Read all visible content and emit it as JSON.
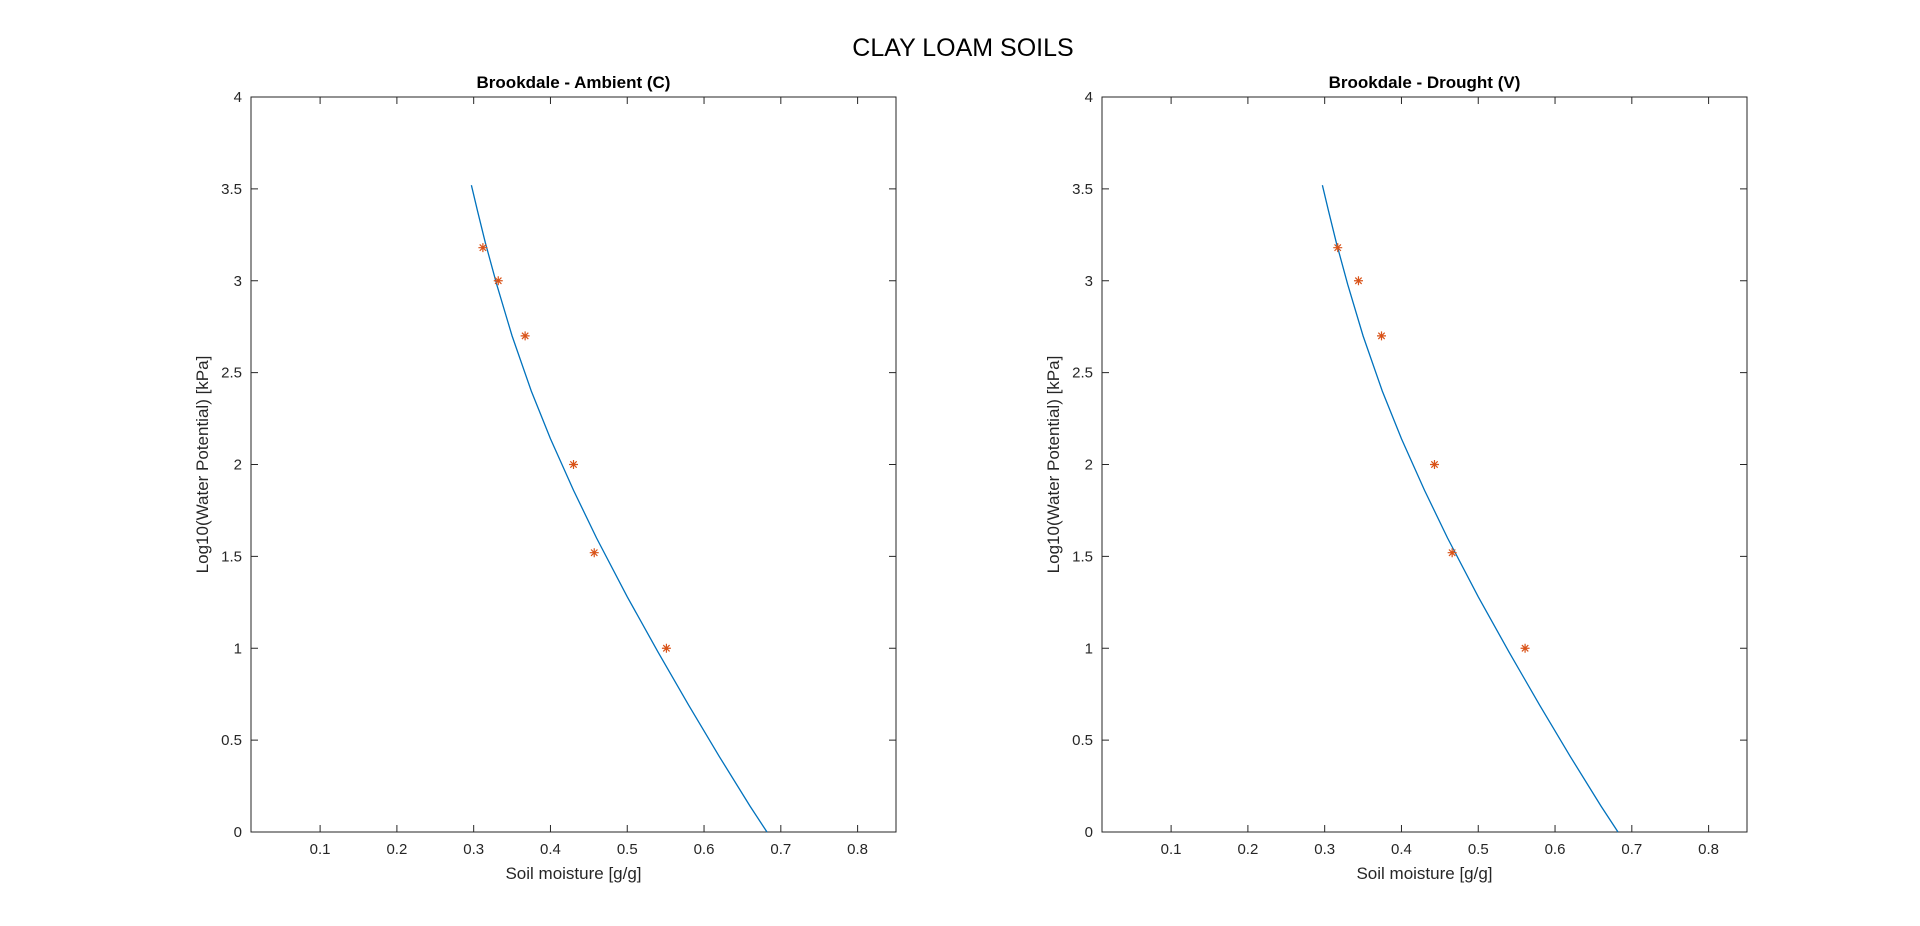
{
  "figure": {
    "title": "CLAY LOAM SOILS"
  },
  "colors": {
    "fit_line": "#0072BD",
    "markers": "#D95319",
    "axes": "#262626"
  },
  "chart_data": [
    {
      "type": "line",
      "title": "Brookdale - Ambient (C)",
      "xlabel": "Soil moisture [g/g]",
      "ylabel": "Log10(Water Potential) [kPa]",
      "xlim": [
        0.01,
        0.85
      ],
      "ylim": [
        0,
        4
      ],
      "xticks": [
        0.1,
        0.2,
        0.3,
        0.4,
        0.5,
        0.6,
        0.7,
        0.8
      ],
      "xtick_labels": [
        "0.1",
        "0.2",
        "0.3",
        "0.4",
        "0.5",
        "0.6",
        "0.7",
        "0.8"
      ],
      "yticks": [
        0,
        0.5,
        1,
        1.5,
        2,
        2.5,
        3,
        3.5,
        4
      ],
      "ytick_labels": [
        "0",
        "0.5",
        "1",
        "1.5",
        "2",
        "2.5",
        "3",
        "3.5",
        "4"
      ],
      "grid": false,
      "series": [
        {
          "kind": "line",
          "x": [
            0.297,
            0.305,
            0.315,
            0.33,
            0.35,
            0.375,
            0.4,
            0.43,
            0.46,
            0.5,
            0.54,
            0.58,
            0.62,
            0.66,
            0.682
          ],
          "y": [
            3.52,
            3.38,
            3.21,
            2.98,
            2.7,
            2.4,
            2.14,
            1.86,
            1.6,
            1.28,
            0.98,
            0.69,
            0.41,
            0.14,
            0.0
          ]
        },
        {
          "kind": "scatter",
          "marker": "*",
          "x": [
            0.312,
            0.332,
            0.367,
            0.43,
            0.457,
            0.551
          ],
          "y": [
            3.18,
            3.0,
            2.7,
            2.0,
            1.52,
            1.0
          ]
        }
      ]
    },
    {
      "type": "line",
      "title": "Brookdale - Drought (V)",
      "xlabel": "Soil moisture [g/g]",
      "ylabel": "Log10(Water Potential) [kPa]",
      "xlim": [
        0.01,
        0.85
      ],
      "ylim": [
        0,
        4
      ],
      "xticks": [
        0.1,
        0.2,
        0.3,
        0.4,
        0.5,
        0.6,
        0.7,
        0.8
      ],
      "xtick_labels": [
        "0.1",
        "0.2",
        "0.3",
        "0.4",
        "0.5",
        "0.6",
        "0.7",
        "0.8"
      ],
      "yticks": [
        0,
        0.5,
        1,
        1.5,
        2,
        2.5,
        3,
        3.5,
        4
      ],
      "ytick_labels": [
        "0",
        "0.5",
        "1",
        "1.5",
        "2",
        "2.5",
        "3",
        "3.5",
        "4"
      ],
      "grid": false,
      "series": [
        {
          "kind": "line",
          "x": [
            0.297,
            0.305,
            0.315,
            0.33,
            0.35,
            0.375,
            0.4,
            0.43,
            0.46,
            0.5,
            0.54,
            0.58,
            0.62,
            0.66,
            0.682
          ],
          "y": [
            3.52,
            3.38,
            3.21,
            2.98,
            2.7,
            2.4,
            2.14,
            1.86,
            1.6,
            1.28,
            0.98,
            0.69,
            0.41,
            0.14,
            0.0
          ]
        },
        {
          "kind": "scatter",
          "marker": "*",
          "x": [
            0.317,
            0.344,
            0.374,
            0.443,
            0.466,
            0.561
          ],
          "y": [
            3.18,
            3.0,
            2.7,
            2.0,
            1.52,
            1.0
          ]
        }
      ]
    }
  ]
}
